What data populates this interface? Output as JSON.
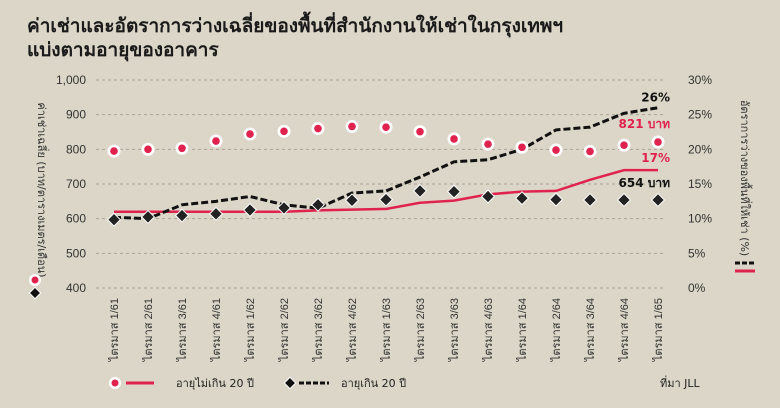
{
  "title": {
    "line1": "ค่าเช่าและอัตราการว่างเฉลี่ยของพื้นที่สำนักงานให้เช่าในกรุงเทพฯ",
    "line2": "แบ่งตามอายุของอาคาร"
  },
  "legend": {
    "under20": "อายุไม่เกิน 20 ปี",
    "over20": "อายุเกิน 20 ปี"
  },
  "source": "ที่มา JLL",
  "colors": {
    "background": "#dcd6c8",
    "red": "#e0234e",
    "black": "#111111",
    "grid": "#a9a396"
  },
  "chart_data": {
    "type": "line",
    "title": "ค่าเช่าและอัตราการว่างเฉลี่ยของพื้นที่สำนักงานให้เช่าในกรุงเทพฯ แบ่งตามอายุของอาคาร",
    "xlabel": "",
    "ylabel": "ค่าเช่าเฉลี่ย (บาท/ตารางเมตร/เดือน)",
    "y2label": "อัตราการว่างของพื้นที่ให้เช่า (%)",
    "ylim": [
      400,
      1000
    ],
    "y2lim": [
      0,
      30
    ],
    "yticks": [
      "400",
      "500",
      "600",
      "700",
      "800",
      "900",
      "1,000"
    ],
    "y2ticks": [
      "0%",
      "5%",
      "10%",
      "15%",
      "20%",
      "25%",
      "30%"
    ],
    "grid": true,
    "legend_position": "bottom",
    "categories": [
      "ไตรมาส 1/61",
      "ไตรมาส 2/61",
      "ไตรมาส 3/61",
      "ไตรมาส 4/61",
      "ไตรมาส 1/62",
      "ไตรมาส 2/62",
      "ไตรมาส 3/62",
      "ไตรมาส 4/62",
      "ไตรมาส 1/63",
      "ไตรมาส 2/63",
      "ไตรมาส 3/63",
      "ไตรมาส 4/63",
      "ไตรมาส 1/64",
      "ไตรมาส 2/64",
      "ไตรมาส 3/64",
      "ไตรมาส 4/64",
      "ไตรมาส 1/65"
    ],
    "series": [
      {
        "name": "ค่าเช่า อายุไม่เกิน 20 ปี",
        "axis": "left",
        "style": "red-dot",
        "values": [
          795,
          800,
          803,
          824,
          844,
          852,
          860,
          866,
          864,
          851,
          830,
          815,
          806,
          798,
          794,
          812,
          821
        ]
      },
      {
        "name": "ค่าเช่า อายุเกิน 20 ปี",
        "axis": "left",
        "style": "black-diamond",
        "values": [
          597,
          605,
          609,
          614,
          625,
          631,
          640,
          653,
          655,
          680,
          678,
          664,
          659,
          655,
          654,
          654,
          654
        ]
      },
      {
        "name": "อัตราว่าง อายุไม่เกิน 20 ปี",
        "axis": "right",
        "style": "red-solid",
        "values": [
          11.0,
          11.0,
          11.0,
          11.0,
          11.0,
          11.0,
          11.2,
          11.3,
          11.4,
          12.3,
          12.6,
          13.5,
          13.9,
          14.0,
          15.6,
          17.0,
          17.0
        ]
      },
      {
        "name": "อัตราว่าง อายุเกิน 20 ปี",
        "axis": "right",
        "style": "black-dashed",
        "values": [
          10.2,
          10.0,
          12.0,
          12.5,
          13.2,
          12.0,
          11.5,
          13.7,
          14.0,
          16.0,
          18.2,
          18.5,
          20.0,
          22.8,
          23.2,
          25.2,
          26.0
        ]
      }
    ],
    "annotations": [
      {
        "text": "26%",
        "series": "อัตราว่าง อายุเกิน 20 ปี",
        "color": "#111111"
      },
      {
        "text": "821 บาท",
        "series": "ค่าเช่า อายุไม่เกิน 20 ปี",
        "color": "#e0234e"
      },
      {
        "text": "17%",
        "series": "อัตราว่าง อายุไม่เกิน 20 ปี",
        "color": "#e0234e"
      },
      {
        "text": "654 บาท",
        "series": "ค่าเช่า อายุเกิน 20 ปี",
        "color": "#111111"
      }
    ]
  }
}
